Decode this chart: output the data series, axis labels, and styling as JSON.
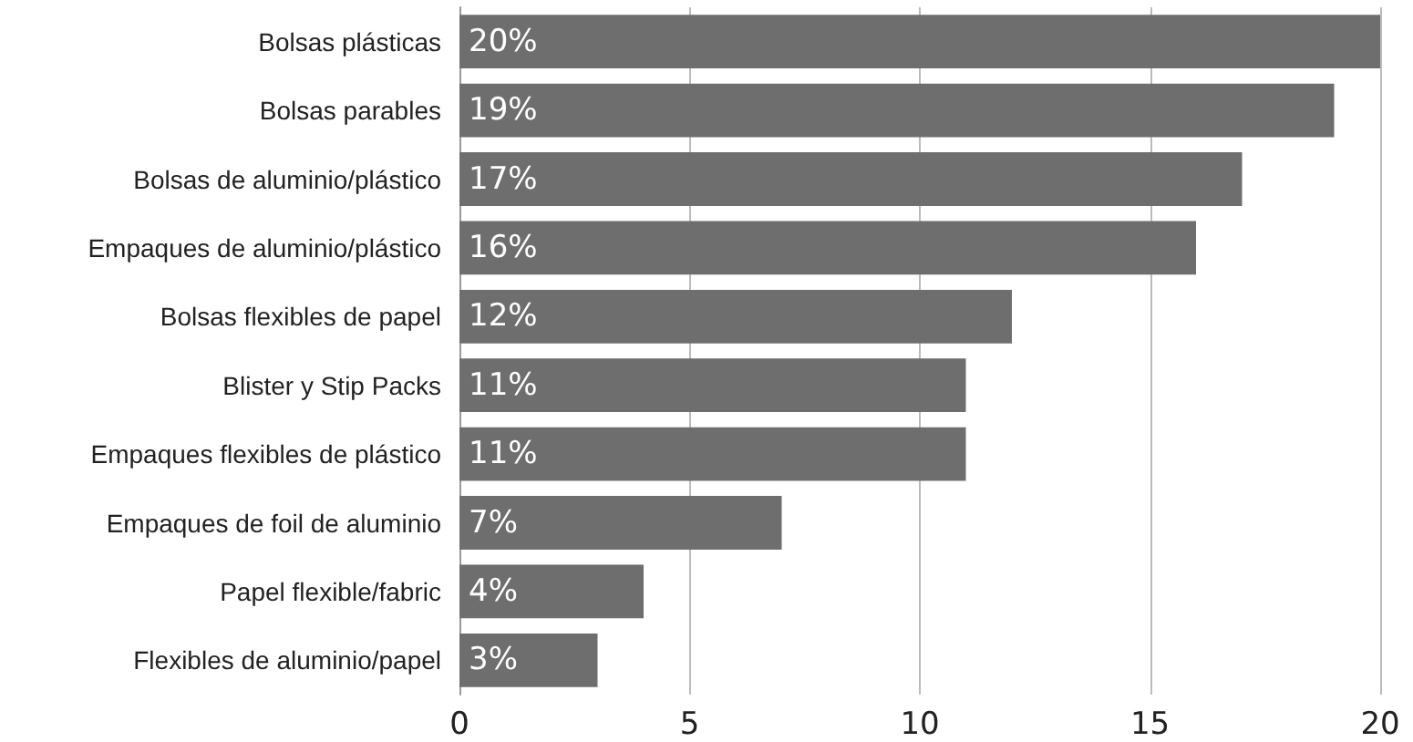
{
  "chart_data": {
    "type": "bar",
    "orientation": "horizontal",
    "categories": [
      "Bolsas plásticas",
      "Bolsas parables",
      "Bolsas de aluminio/plástico",
      "Empaques de aluminio/plástico",
      "Bolsas flexibles de papel",
      "Blister y Stip Packs",
      "Empaques flexibles de plástico",
      "Empaques de foil de aluminio",
      "Papel flexible/fabric",
      "Flexibles de aluminio/papel"
    ],
    "values": [
      20,
      19,
      17,
      16,
      12,
      11,
      11,
      7,
      4,
      3
    ],
    "value_labels": [
      "20%",
      "19%",
      "17%",
      "16%",
      "12%",
      "11%",
      "11%",
      "7%",
      "4%",
      "3%"
    ],
    "color": "#6e6e6e",
    "xlim": [
      0,
      20
    ],
    "xticks": [
      0,
      5,
      10,
      15,
      20
    ],
    "grid": "x"
  }
}
